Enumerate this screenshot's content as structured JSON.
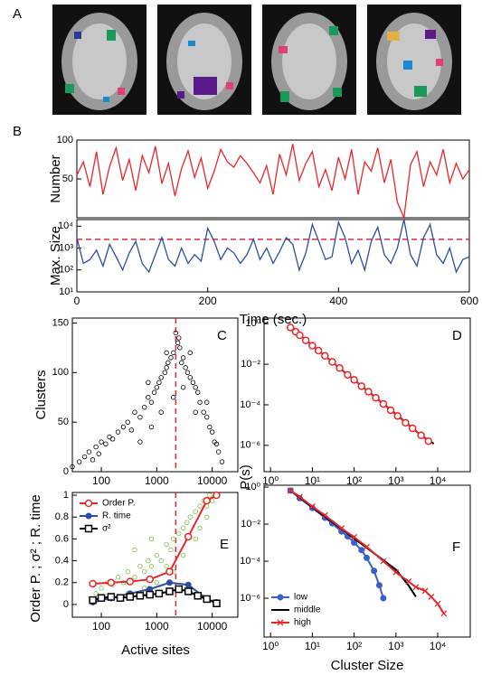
{
  "panel_a": {
    "label": "A"
  },
  "chart_data": [
    {
      "type": "line",
      "panel": "B",
      "y_label": "Number",
      "x": [
        0,
        10,
        20,
        30,
        40,
        50,
        60,
        70,
        80,
        90,
        100,
        110,
        120,
        130,
        140,
        150,
        160,
        170,
        180,
        190,
        200,
        210,
        220,
        230,
        240,
        250,
        260,
        270,
        280,
        290,
        300,
        310,
        320,
        330,
        340,
        350,
        360,
        370,
        380,
        390,
        400,
        410,
        420,
        430,
        440,
        450,
        460,
        470,
        480,
        490,
        500,
        510,
        520,
        530,
        540,
        550,
        560,
        570,
        580,
        590,
        600
      ],
      "xlim": [
        0,
        600
      ],
      "ylim": [
        0,
        100
      ],
      "yticks": [
        50,
        100
      ],
      "series": [
        {
          "color": "#e8262a",
          "line": true,
          "marker": "none",
          "values": [
            55,
            72,
            40,
            85,
            30,
            66,
            90,
            48,
            75,
            35,
            80,
            58,
            92,
            44,
            70,
            28,
            63,
            86,
            52,
            77,
            38,
            60,
            88,
            72,
            65,
            80,
            70,
            58,
            45,
            67,
            30,
            82,
            55,
            95,
            48,
            70,
            85,
            40,
            62,
            35,
            78,
            50,
            88,
            30,
            72,
            60,
            90,
            45,
            75,
            20,
            0,
            68,
            85,
            40,
            72,
            55,
            88,
            45,
            70,
            50,
            62
          ]
        }
      ]
    },
    {
      "type": "line",
      "y_label": "Max. Size",
      "x_label": "Time (sec.)",
      "x": [
        0,
        10,
        20,
        30,
        40,
        50,
        60,
        70,
        80,
        90,
        100,
        110,
        120,
        130,
        140,
        150,
        160,
        170,
        180,
        190,
        200,
        210,
        220,
        230,
        240,
        250,
        260,
        270,
        280,
        290,
        300,
        310,
        320,
        330,
        340,
        350,
        360,
        370,
        380,
        390,
        400,
        410,
        420,
        430,
        440,
        450,
        460,
        470,
        480,
        490,
        500,
        510,
        520,
        530,
        540,
        550,
        560,
        570,
        580,
        590,
        600
      ],
      "xlim": [
        0,
        600
      ],
      "xticks": [
        0,
        200,
        400,
        600
      ],
      "ylim": [
        10,
        20000
      ],
      "yscale": "log",
      "yticks": [
        {
          "value": 10,
          "label": "10¹"
        },
        {
          "value": 100,
          "label": "10²"
        },
        {
          "value": 1000,
          "label": "10³"
        },
        {
          "value": 10000,
          "label": "10⁴"
        }
      ],
      "reference_line": {
        "axis": "y",
        "value": 2500,
        "color": "#e8262a"
      },
      "series": [
        {
          "color": "#2b4ea2",
          "line": true,
          "marker": "none",
          "values": [
            3000,
            200,
            300,
            800,
            150,
            1500,
            400,
            100,
            600,
            2000,
            200,
            80,
            500,
            3000,
            300,
            150,
            1000,
            200,
            500,
            250,
            8000,
            2000,
            300,
            1000,
            600,
            200,
            500,
            2500,
            300,
            1000,
            200,
            700,
            3000,
            1500,
            100,
            600,
            12000,
            2000,
            300,
            400,
            15000,
            3000,
            200,
            800,
            100,
            2000,
            9000,
            500,
            200,
            1000,
            20000,
            500,
            150,
            3000,
            12000,
            500,
            200,
            1000,
            80,
            300,
            400
          ]
        }
      ]
    },
    {
      "type": "scatter",
      "panel": "C",
      "y_label": "Clusters",
      "xlim": [
        30,
        29000
      ],
      "xscale": "log",
      "xticks": [
        100,
        1000,
        10000
      ],
      "ylim": [
        0,
        155
      ],
      "yticks": [
        0,
        50,
        100,
        150
      ],
      "reference_line": {
        "axis": "x",
        "value": 2200,
        "color": "#e8262a"
      },
      "series": [
        {
          "color": "#000000",
          "line": false,
          "marker": "small-open-circle",
          "x": [
            30,
            40,
            50,
            60,
            70,
            80,
            90,
            100,
            120,
            140,
            160,
            200,
            250,
            300,
            350,
            400,
            500,
            600,
            700,
            800,
            900,
            1000,
            1100,
            1200,
            1400,
            1500,
            1600,
            1800,
            2000,
            2200,
            2400,
            2600,
            2800,
            3000,
            3300,
            3600,
            4000,
            4500,
            5000,
            5500,
            6000,
            7000,
            8000,
            9000,
            10000,
            11000,
            12000,
            13000,
            15000,
            500,
            800,
            1200,
            2000,
            3000,
            5000,
            700,
            1500,
            2500,
            4000,
            8000
          ],
          "values": [
            5,
            10,
            15,
            20,
            12,
            25,
            18,
            30,
            28,
            35,
            33,
            40,
            45,
            50,
            42,
            60,
            55,
            65,
            75,
            70,
            80,
            85,
            90,
            95,
            100,
            105,
            110,
            115,
            120,
            140,
            130,
            125,
            110,
            115,
            105,
            100,
            95,
            90,
            85,
            80,
            70,
            60,
            55,
            45,
            40,
            30,
            28,
            20,
            10,
            30,
            45,
            60,
            75,
            85,
            60,
            90,
            120,
            135,
            120,
            70
          ]
        }
      ]
    },
    {
      "type": "line",
      "panel": "D",
      "y_label": "P(s)",
      "xlim": [
        0.7,
        60000
      ],
      "xscale": "log",
      "ylim": [
        5e-08,
        1.9
      ],
      "yscale": "log",
      "xticks": [
        {
          "value": 1,
          "label": "10⁰"
        },
        {
          "value": 10,
          "label": "10¹"
        },
        {
          "value": 100,
          "label": "10²"
        },
        {
          "value": 1000,
          "label": "10³"
        },
        {
          "value": 10000,
          "label": "10⁴"
        }
      ],
      "yticks": [
        {
          "value": 1,
          "label": "10⁰"
        },
        {
          "value": 0.01,
          "label": "10⁻²"
        },
        {
          "value": 0.0001,
          "label": "10⁻⁴"
        },
        {
          "value": 1e-06,
          "label": "10⁻⁶"
        }
      ],
      "series": [
        {
          "color": "#000000",
          "line": true,
          "marker": "none",
          "x": [
            3,
            10,
            100,
            1000,
            4000,
            8000
          ],
          "values": [
            0.65,
            0.083,
            0.0017,
            3.5e-05,
            3.1e-06,
            1.2e-06
          ]
        },
        {
          "color": "#e8262a",
          "line": true,
          "marker": "open-circle",
          "x": [
            3,
            4,
            5,
            7,
            10,
            14,
            20,
            30,
            45,
            70,
            100,
            150,
            220,
            330,
            500,
            750,
            1100,
            1700,
            2500,
            4000,
            6000
          ],
          "values": [
            0.65,
            0.4,
            0.27,
            0.15,
            0.083,
            0.047,
            0.026,
            0.013,
            0.0065,
            0.003,
            0.0017,
            0.00083,
            0.00044,
            0.00022,
            0.00011,
            5.4e-05,
            2.8e-05,
            1.3e-05,
            6.9e-06,
            3.1e-06,
            1.6e-06
          ]
        }
      ]
    },
    {
      "type": "line",
      "panel": "E",
      "y_label": "Order P. ; σ² ; R. time",
      "x_label": "Active sites",
      "xlim": [
        30,
        29000
      ],
      "xscale": "log",
      "xticks": [
        100,
        1000,
        10000
      ],
      "ylim": [
        -0.116,
        1.025
      ],
      "yticks": [
        0,
        0.2,
        0.4,
        0.6,
        0.8,
        1
      ],
      "reference_line": {
        "axis": "x",
        "value": 2200,
        "color": "#e8262a"
      },
      "legend": "upper left",
      "series": [
        {
          "color": "#7bc043",
          "line": false,
          "marker": "small-open-circle",
          "x": [
            80,
            100,
            130,
            160,
            200,
            250,
            300,
            400,
            500,
            600,
            700,
            800,
            1000,
            1200,
            1500,
            1800,
            2000,
            2500,
            3000,
            3500,
            4000,
            5000,
            6000,
            7000,
            8000,
            9000,
            10000,
            12000,
            150,
            300,
            600,
            1000,
            2000,
            3000,
            5000,
            8000,
            400,
            800,
            1500,
            6000
          ],
          "values": [
            0.1,
            0.15,
            0.2,
            0.18,
            0.25,
            0.2,
            0.3,
            0.25,
            0.35,
            0.3,
            0.4,
            0.35,
            0.45,
            0.4,
            0.55,
            0.5,
            0.6,
            0.65,
            0.7,
            0.75,
            0.8,
            0.85,
            0.9,
            0.95,
            0.9,
            1.0,
            0.95,
            1.0,
            0.05,
            0.1,
            0.15,
            0.2,
            0.3,
            0.45,
            0.6,
            0.8,
            0.5,
            0.6,
            0.35,
            0.7
          ]
        },
        {
          "name": "Order P.",
          "color": "#e8262a",
          "line": true,
          "marker": "open-circle",
          "x": [
            70,
            150,
            330,
            750,
            1700,
            3700,
            8000,
            12000
          ],
          "values": [
            0.19,
            0.2,
            0.21,
            0.23,
            0.3,
            0.62,
            0.95,
            1.0
          ]
        },
        {
          "name": "R. time",
          "color": "#2b4ea2",
          "line": true,
          "marker": "filled-circle",
          "x": [
            70,
            150,
            330,
            750,
            1700,
            3700,
            8000,
            12000
          ],
          "values": [
            0.02,
            0.06,
            0.1,
            0.14,
            0.2,
            0.18,
            0.05,
            0.02
          ]
        },
        {
          "name": "σ²",
          "color": "#000000",
          "line": true,
          "marker": "open-square",
          "x": [
            70,
            100,
            150,
            220,
            330,
            500,
            750,
            1100,
            1700,
            2500,
            3700,
            5500,
            8000,
            12000
          ],
          "values": [
            0.04,
            0.06,
            0.07,
            0.06,
            0.07,
            0.08,
            0.09,
            0.1,
            0.12,
            0.14,
            0.12,
            0.08,
            0.05,
            0.01
          ]
        }
      ]
    },
    {
      "type": "line",
      "panel": "F",
      "x_label": "Cluster Size",
      "xlim": [
        0.7,
        60000
      ],
      "xscale": "log",
      "ylim": [
        8e-09,
        1.26
      ],
      "yscale": "log",
      "xticks": [
        {
          "value": 1,
          "label": "10⁰"
        },
        {
          "value": 10,
          "label": "10¹"
        },
        {
          "value": 100,
          "label": "10²"
        },
        {
          "value": 1000,
          "label": "10³"
        },
        {
          "value": 10000,
          "label": "10⁴"
        }
      ],
      "yticks": [
        {
          "value": 1,
          "label": "10⁰"
        },
        {
          "value": 0.01,
          "label": "10⁻²"
        },
        {
          "value": 0.0001,
          "label": "10⁻⁴"
        },
        {
          "value": 1e-06,
          "label": "10⁻⁶"
        }
      ],
      "legend": "lower left",
      "series": [
        {
          "name": "low",
          "color": "#3a5fcd",
          "line": true,
          "marker": "filled-circle",
          "x": [
            3,
            5,
            10,
            20,
            30,
            50,
            70,
            100,
            150,
            200,
            300,
            400,
            500
          ],
          "values": [
            0.65,
            0.25,
            0.075,
            0.022,
            0.011,
            0.004,
            0.0022,
            0.001,
            0.0004,
            0.00015,
            3e-05,
            5e-06,
            1e-06
          ]
        },
        {
          "name": "middle",
          "color": "#000000",
          "line": true,
          "marker": "none",
          "x": [
            3,
            10,
            100,
            1000,
            2000,
            3000
          ],
          "values": [
            0.65,
            0.083,
            0.0017,
            3.5e-05,
            5e-06,
            1.2e-06
          ]
        },
        {
          "name": "high",
          "color": "#e8262a",
          "line": true,
          "marker": "x",
          "x": [
            3,
            5,
            10,
            20,
            50,
            100,
            200,
            500,
            1000,
            2000,
            3000,
            5000,
            7000,
            10000,
            14000
          ],
          "values": [
            0.65,
            0.3,
            0.09,
            0.03,
            0.006,
            0.002,
            0.0006,
            0.0001,
            2.5e-05,
            8e-06,
            4e-06,
            2.5e-06,
            1.2e-06,
            5e-07,
            1.5e-07
          ]
        }
      ]
    }
  ]
}
